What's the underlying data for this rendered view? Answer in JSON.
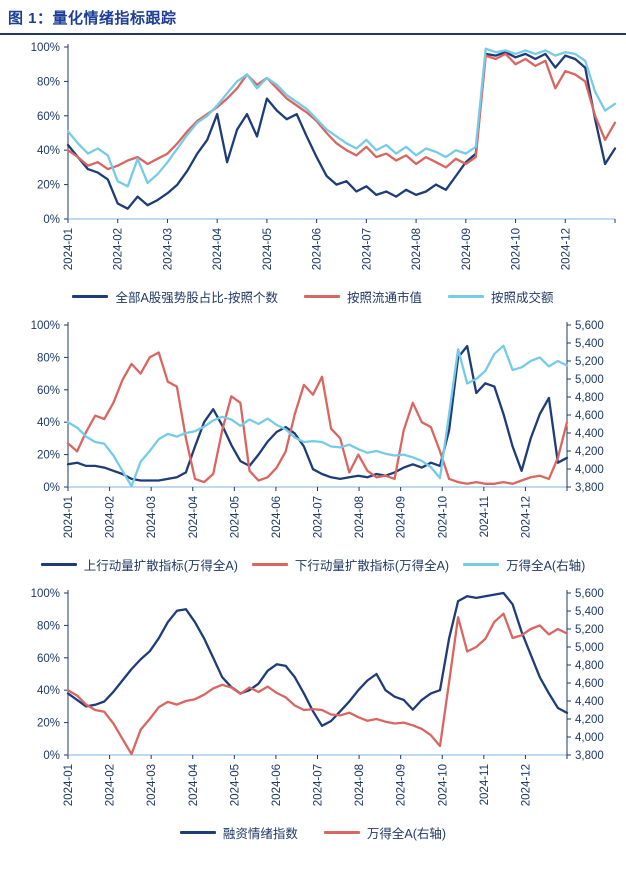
{
  "title": "图 1：量化情绪指标跟踪",
  "colors": {
    "navy": "#1e3c78",
    "red": "#d96660",
    "light_blue": "#76cbe8",
    "title_blue": "#1e3e96",
    "rule_navy": "#203864",
    "axis_text": "#1f3864",
    "axis_line": "#1f3864",
    "x_axis_line": "#9cc2e5"
  },
  "chart_data": [
    {
      "type": "line",
      "title": "",
      "x_labels": [
        "2024-01",
        "2024-02",
        "2024-03",
        "2024-04",
        "2024-05",
        "2024-06",
        "2024-07",
        "2024-08",
        "2024-09",
        "2024-10",
        "2024-12"
      ],
      "y_ticks": [
        "0%",
        "20%",
        "40%",
        "60%",
        "80%",
        "100%"
      ],
      "ylim": [
        0,
        100
      ],
      "grid": false,
      "legend_position": "bottom",
      "series": [
        {
          "name": "全部A股强势股占比-按照个数",
          "color": "#1e3c78",
          "axis": "left",
          "values": [
            43,
            36,
            29,
            27,
            23,
            9,
            6,
            13,
            8,
            11,
            15,
            20,
            28,
            38,
            46,
            61,
            33,
            52,
            61,
            48,
            70,
            63,
            58,
            61,
            48,
            36,
            25,
            20,
            22,
            16,
            19,
            14,
            16,
            13,
            17,
            14,
            16,
            20,
            17,
            25,
            33,
            38,
            96,
            95,
            97,
            94,
            96,
            93,
            96,
            88,
            95,
            93,
            88,
            58,
            32,
            41
          ]
        },
        {
          "name": "按照流通市值",
          "color": "#d96660",
          "axis": "left",
          "values": [
            40,
            36,
            31,
            33,
            29,
            31,
            34,
            36,
            32,
            35,
            38,
            44,
            51,
            57,
            61,
            65,
            70,
            76,
            84,
            78,
            82,
            76,
            70,
            66,
            62,
            57,
            50,
            44,
            40,
            37,
            42,
            36,
            38,
            34,
            37,
            32,
            36,
            33,
            30,
            35,
            32,
            36,
            95,
            93,
            96,
            90,
            93,
            89,
            92,
            76,
            86,
            84,
            80,
            60,
            46,
            56
          ]
        },
        {
          "name": "按照成交额",
          "color": "#76cbe8",
          "axis": "left",
          "values": [
            51,
            44,
            38,
            41,
            37,
            22,
            19,
            35,
            21,
            26,
            33,
            41,
            49,
            56,
            60,
            66,
            73,
            80,
            84,
            76,
            82,
            78,
            72,
            68,
            64,
            58,
            52,
            48,
            44,
            41,
            46,
            40,
            43,
            38,
            42,
            37,
            41,
            39,
            36,
            40,
            38,
            42,
            99,
            97,
            98,
            96,
            98,
            96,
            98,
            95,
            97,
            96,
            92,
            74,
            63,
            67
          ]
        }
      ]
    },
    {
      "type": "line",
      "title": "",
      "x_labels": [
        "2024-01",
        "2024-02",
        "2024-03",
        "2024-04",
        "2024-05",
        "2024-06",
        "2024-07",
        "2024-08",
        "2024-09",
        "2024-10",
        "2024-11",
        "2024-12"
      ],
      "y_ticks": [
        "0%",
        "20%",
        "40%",
        "60%",
        "80%",
        "100%"
      ],
      "ylim": [
        0,
        100
      ],
      "right_ticks": [
        "3,800",
        "4,000",
        "4,200",
        "4,400",
        "4,600",
        "4,800",
        "5,000",
        "5,200",
        "5,400",
        "5,600"
      ],
      "right_ylim": [
        3800,
        5600
      ],
      "grid": false,
      "legend_position": "bottom",
      "series": [
        {
          "name": "上行动量扩散指标(万得全A)",
          "color": "#1e3c78",
          "axis": "left",
          "values": [
            14,
            15,
            13,
            13,
            12,
            10,
            8,
            5,
            4,
            4,
            4,
            5,
            6,
            9,
            25,
            40,
            48,
            38,
            26,
            16,
            13,
            20,
            28,
            34,
            37,
            33,
            25,
            11,
            8,
            6,
            5,
            6,
            7,
            6,
            8,
            7,
            9,
            12,
            14,
            12,
            15,
            13,
            35,
            80,
            87,
            58,
            64,
            62,
            45,
            25,
            10,
            30,
            45,
            55,
            15,
            18
          ]
        },
        {
          "name": "下行动量扩散指标(万得全A)",
          "color": "#d96660",
          "axis": "left",
          "values": [
            27,
            22,
            34,
            44,
            42,
            52,
            66,
            76,
            70,
            80,
            83,
            65,
            62,
            30,
            5,
            3,
            8,
            35,
            56,
            52,
            10,
            4,
            6,
            12,
            22,
            45,
            63,
            57,
            68,
            36,
            30,
            9,
            20,
            10,
            6,
            7,
            5,
            35,
            52,
            40,
            37,
            22,
            5,
            3,
            2,
            3,
            2,
            2,
            3,
            2,
            4,
            6,
            7,
            5,
            18,
            40
          ]
        },
        {
          "name": "万得全A(右轴)",
          "color": "#76cbe8",
          "axis": "right",
          "values": [
            4520,
            4460,
            4360,
            4300,
            4280,
            4150,
            3980,
            3810,
            4080,
            4200,
            4330,
            4390,
            4360,
            4400,
            4420,
            4470,
            4540,
            4580,
            4550,
            4480,
            4550,
            4500,
            4560,
            4490,
            4440,
            4350,
            4300,
            4310,
            4300,
            4250,
            4240,
            4270,
            4220,
            4180,
            4200,
            4170,
            4150,
            4160,
            4130,
            4090,
            4020,
            3900,
            4610,
            5330,
            4950,
            5000,
            5090,
            5280,
            5370,
            5100,
            5130,
            5200,
            5240,
            5140,
            5200,
            5150
          ]
        }
      ]
    },
    {
      "type": "line",
      "title": "",
      "x_labels": [
        "2024-01",
        "2024-02",
        "2024-03",
        "2024-04",
        "2024-05",
        "2024-06",
        "2024-07",
        "2024-08",
        "2024-09",
        "2024-10",
        "2024-11",
        "2024-12"
      ],
      "y_ticks": [
        "0%",
        "20%",
        "40%",
        "60%",
        "80%",
        "100%"
      ],
      "ylim": [
        0,
        100
      ],
      "right_ticks": [
        "3,800",
        "4,000",
        "4,200",
        "4,400",
        "4,600",
        "4,800",
        "5,000",
        "5,200",
        "5,400",
        "5,600"
      ],
      "right_ylim": [
        3800,
        5600
      ],
      "grid": false,
      "legend_position": "bottom",
      "series": [
        {
          "name": "融资情绪指数",
          "color": "#1e3c78",
          "axis": "left",
          "values": [
            38,
            34,
            30,
            31,
            33,
            39,
            46,
            53,
            59,
            64,
            72,
            82,
            89,
            90,
            82,
            72,
            60,
            48,
            42,
            38,
            40,
            44,
            52,
            56,
            55,
            48,
            38,
            27,
            18,
            21,
            27,
            33,
            40,
            46,
            50,
            40,
            36,
            34,
            28,
            34,
            38,
            40,
            72,
            95,
            98,
            97,
            98,
            99,
            100,
            93,
            76,
            62,
            48,
            38,
            29,
            26
          ]
        },
        {
          "name": "万得全A(右轴)",
          "color": "#d96660",
          "axis": "right",
          "values": [
            4520,
            4460,
            4360,
            4300,
            4280,
            4150,
            3980,
            3810,
            4080,
            4200,
            4330,
            4390,
            4360,
            4400,
            4420,
            4470,
            4540,
            4580,
            4550,
            4480,
            4550,
            4500,
            4560,
            4490,
            4440,
            4350,
            4300,
            4310,
            4300,
            4250,
            4240,
            4270,
            4220,
            4180,
            4200,
            4170,
            4150,
            4160,
            4130,
            4090,
            4020,
            3900,
            4610,
            5330,
            4950,
            5000,
            5090,
            5280,
            5370,
            5100,
            5130,
            5200,
            5240,
            5140,
            5200,
            5150
          ]
        }
      ]
    }
  ]
}
